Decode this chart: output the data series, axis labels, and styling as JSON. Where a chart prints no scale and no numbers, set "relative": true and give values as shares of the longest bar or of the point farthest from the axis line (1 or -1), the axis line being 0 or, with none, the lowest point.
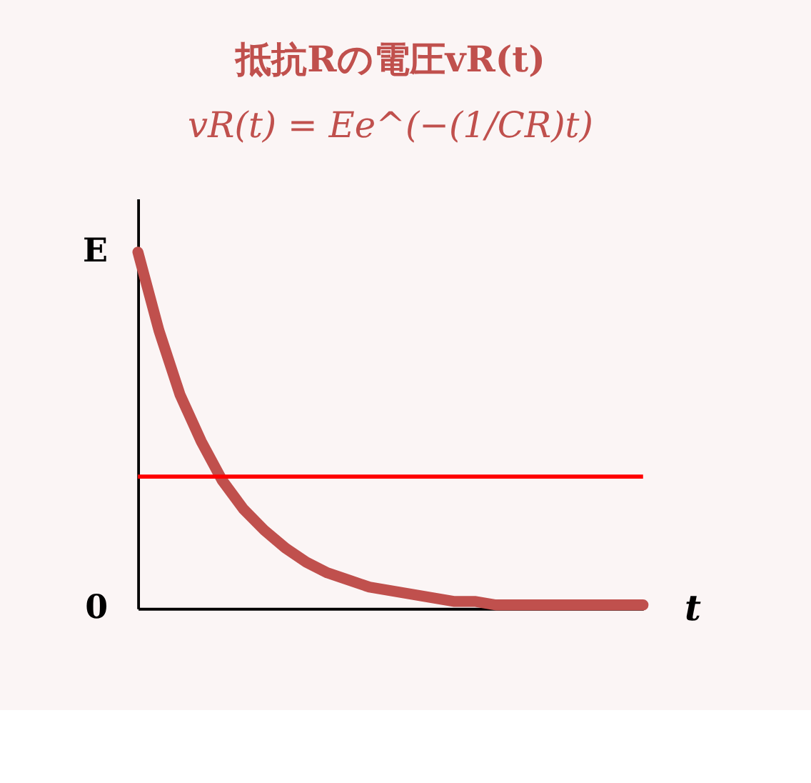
{
  "chart_data": {
    "type": "line",
    "title": "抵抗Rの電圧vR(t)",
    "subtitle": "vR(t) = Ee^(−(1/CR)t)",
    "xlabel": "t",
    "relative": true,
    "categories": [
      null,
      null,
      null,
      null,
      null,
      null,
      null,
      null,
      null,
      null,
      null,
      null,
      null,
      null,
      null,
      null,
      null,
      null,
      null,
      null,
      null,
      null,
      null,
      null,
      null
    ],
    "series": [
      {
        "color": "#c0504d",
        "values": [
          1.0,
          0.78,
          0.6,
          0.47,
          0.36,
          0.28,
          0.22,
          0.17,
          0.13,
          0.1,
          0.08,
          0.06,
          0.05,
          0.04,
          0.03,
          0.02,
          0.02,
          0.01,
          0.01,
          0.01,
          0.01,
          0.01,
          0.01,
          0.01,
          0.01
        ]
      }
    ],
    "annotations": [
      "E",
      "0"
    ],
    "ref_lines": [
      {
        "axis": "y",
        "value": 0.37,
        "color": "#ff0000"
      }
    ],
    "grid": false,
    "line_style": "solid"
  }
}
